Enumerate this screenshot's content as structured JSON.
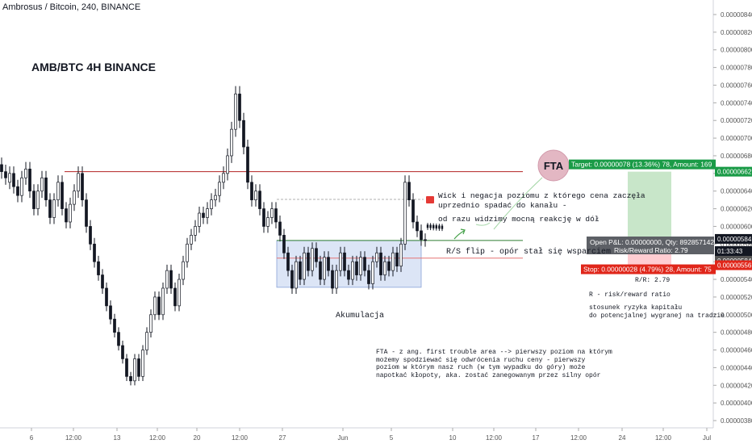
{
  "header": {
    "symbol_line": "Ambrosus / Bitcoin, 240, BINANCE"
  },
  "chart_title": "AMB/BTC 4H BINANCE",
  "annotations": {
    "wick": "Wick i negacja poziomu z którego cena zaczęła\nuprzednio spadać do kanału -",
    "reaction": "od razu widzimy mocną reakcję w dół",
    "rs_flip": "R/S flip - opór stał się wsparciem",
    "accumulation": "Akumulacja",
    "fta_badge": "FTA",
    "fta_desc": "FTA - z ang. first trouble area --> pierwszy poziom na którym\nmożemy spodziewać się odwrócenia ruchu ceny - pierwszy\npoziom w którym nasz ruch (w tym wypadku do góry) może\nnapotkać kłopoty, aka. zostać zanegowanym przez silny opór",
    "rr_short": "R/R: 2.79",
    "rr_def": "R - risk/reward ratio",
    "rr_desc": "stosunek ryzyka kapitału\ndo potencjalnej wygranej na tradzie"
  },
  "position": {
    "target_label": "Target: 0.00000078 (13.36%) 78, Amount: 169",
    "stop_label": "Stop: 0.00000028 (4.79%) 28, Amount: 75",
    "pnl_label": "Open P&L: 0.00000000, Qty: 892857142",
    "rr_label": "Risk/Reward Ratio: 2.79",
    "entry": 5.84e-06,
    "target": 6.62e-06,
    "stop": 5.56e-06
  },
  "price_axis": {
    "ticks": [
      "0.00000840",
      "0.00000820",
      "0.00000800",
      "0.00000780",
      "0.00000760",
      "0.00000740",
      "0.00000720",
      "0.00000700",
      "0.00000680",
      "0.00000660",
      "0.00000640",
      "0.00000620",
      "0.00000600",
      "0.00000580",
      "0.00000560",
      "0.00000540",
      "0.00000520",
      "0.00000500",
      "0.00000480",
      "0.00000460",
      "0.00000440",
      "0.00000420",
      "0.00000400",
      "0.00000380"
    ],
    "badges": [
      {
        "text": "0.00000662",
        "color": "#1a9b47"
      },
      {
        "text": "0.00000584",
        "color": "#131722"
      },
      {
        "text": "01:33:43",
        "color": "#131722"
      },
      {
        "text": "0.00000584",
        "color": "#555555"
      },
      {
        "text": "0.00000556",
        "color": "#e0261a"
      }
    ]
  },
  "time_axis": {
    "labels": [
      "6",
      "12:00",
      "13",
      "12:00",
      "20",
      "12:00",
      "27",
      "Jun",
      "5",
      "10",
      "12:00",
      "17",
      "12:00",
      "24",
      "12:00",
      "Jul"
    ]
  },
  "colors": {
    "up": "#131722",
    "down": "#131722",
    "resistance": "#b22222",
    "support_green": "#2e7d32",
    "accum_box": "#c5d3f0",
    "target_zone": "#c8e6c9",
    "stop_zone": "#ffcdd2",
    "fta_circle": "#e3b7c3"
  },
  "chart_data": {
    "type": "candlestick",
    "title": "AMB/BTC 4H BINANCE",
    "ylabel": "",
    "ylim": [
      3.7e-06,
      8.5e-06
    ],
    "levels": {
      "resistance_top": 6.62e-06,
      "rs_flip": 5.84e-06,
      "lower_red": 5.64e-06
    },
    "accumulation_zone": {
      "y_range": [
        5.31e-06,
        5.84e-06
      ],
      "label": "Akumulacja"
    },
    "price_path": [
      [
        6.7e-06,
        6.62e-06
      ],
      [
        6.62e-06,
        6.55e-06
      ],
      [
        6.5e-06,
        6.6e-06
      ],
      [
        6.6e-06,
        6.45e-06
      ],
      [
        6.45e-06,
        6.35e-06
      ],
      [
        6.35e-06,
        6.55e-06
      ],
      [
        6.55e-06,
        6.65e-06
      ],
      [
        6.65e-06,
        6.4e-06
      ],
      [
        6.4e-06,
        6.2e-06
      ],
      [
        6.2e-06,
        6.4e-06
      ],
      [
        6.4e-06,
        6.55e-06
      ],
      [
        6.55e-06,
        6.3e-06
      ],
      [
        6.3e-06,
        6.1e-06
      ],
      [
        6.1e-06,
        6.3e-06
      ],
      [
        6.3e-06,
        6.5e-06
      ],
      [
        6.5e-06,
        6.2e-06
      ],
      [
        6.2e-06,
        6.05e-06
      ],
      [
        6.05e-06,
        6.25e-06
      ],
      [
        6.25e-06,
        6.4e-06
      ],
      [
        6.4e-06,
        6.6e-06
      ],
      [
        6.6e-06,
        6.3e-06
      ],
      [
        6.3e-06,
        6e-06
      ],
      [
        6e-06,
        5.8e-06
      ],
      [
        5.8e-06,
        5.6e-06
      ],
      [
        5.6e-06,
        5.45e-06
      ],
      [
        5.45e-06,
        5.3e-06
      ],
      [
        5.3e-06,
        5.1e-06
      ],
      [
        5.1e-06,
        4.95e-06
      ],
      [
        4.95e-06,
        4.8e-06
      ],
      [
        4.8e-06,
        4.65e-06
      ],
      [
        4.65e-06,
        4.5e-06
      ],
      [
        4.5e-06,
        4.3e-06
      ],
      [
        4.3e-06,
        4.25e-06
      ],
      [
        4.25e-06,
        4.5e-06
      ],
      [
        4.5e-06,
        4.3e-06
      ],
      [
        4.3e-06,
        4.6e-06
      ],
      [
        4.6e-06,
        4.8e-06
      ],
      [
        4.8e-06,
        5e-06
      ],
      [
        5e-06,
        5.2e-06
      ],
      [
        5.2e-06,
        5e-06
      ],
      [
        5e-06,
        5.3e-06
      ],
      [
        5.3e-06,
        5.5e-06
      ],
      [
        5.5e-06,
        5.3e-06
      ],
      [
        5.3e-06,
        5.1e-06
      ],
      [
        5.1e-06,
        5.4e-06
      ],
      [
        5.4e-06,
        5.6e-06
      ],
      [
        5.6e-06,
        5.8e-06
      ],
      [
        5.8e-06,
        5.9e-06
      ],
      [
        5.9e-06,
        6e-06
      ],
      [
        6e-06,
        6.15e-06
      ],
      [
        6.15e-06,
        6.1e-06
      ],
      [
        6.1e-06,
        6.2e-06
      ],
      [
        6.2e-06,
        6.3e-06
      ],
      [
        6.3e-06,
        6.35e-06
      ],
      [
        6.35e-06,
        6.5e-06
      ],
      [
        6.5e-06,
        6.6e-06
      ],
      [
        6.6e-06,
        6.8e-06
      ],
      [
        6.8e-06,
        7.1e-06
      ],
      [
        7.1e-06,
        7.5e-06
      ],
      [
        7.5e-06,
        7.2e-06
      ],
      [
        7.2e-06,
        6.9e-06
      ],
      [
        6.9e-06,
        6.5e-06
      ],
      [
        6.5e-06,
        6.3e-06
      ],
      [
        6.3e-06,
        6.4e-06
      ],
      [
        6.4e-06,
        6.2e-06
      ],
      [
        6.2e-06,
        6e-06
      ],
      [
        6e-06,
        6.1e-06
      ],
      [
        6.1e-06,
        6.2e-06
      ],
      [
        6.2e-06,
        6.05e-06
      ],
      [
        6.05e-06,
        5.9e-06
      ],
      [
        5.9e-06,
        5.7e-06
      ],
      [
        5.7e-06,
        5.5e-06
      ],
      [
        5.5e-06,
        5.3e-06
      ],
      [
        5.3e-06,
        5.6e-06
      ],
      [
        5.6e-06,
        5.4e-06
      ],
      [
        5.4e-06,
        5.7e-06
      ],
      [
        5.7e-06,
        5.5e-06
      ],
      [
        5.5e-06,
        5.75e-06
      ],
      [
        5.75e-06,
        5.6e-06
      ],
      [
        5.6e-06,
        5.4e-06
      ],
      [
        5.4e-06,
        5.65e-06
      ],
      [
        5.65e-06,
        5.5e-06
      ],
      [
        5.5e-06,
        5.3e-06
      ],
      [
        5.3e-06,
        5.5e-06
      ],
      [
        5.5e-06,
        5.7e-06
      ],
      [
        5.7e-06,
        5.5e-06
      ],
      [
        5.5e-06,
        5.4e-06
      ],
      [
        5.4e-06,
        5.6e-06
      ],
      [
        5.6e-06,
        5.45e-06
      ],
      [
        5.45e-06,
        5.65e-06
      ],
      [
        5.65e-06,
        5.5e-06
      ],
      [
        5.5e-06,
        5.35e-06
      ],
      [
        5.35e-06,
        5.6e-06
      ],
      [
        5.6e-06,
        5.7e-06
      ],
      [
        5.7e-06,
        5.45e-06
      ],
      [
        5.45e-06,
        5.6e-06
      ],
      [
        5.6e-06,
        5.5e-06
      ],
      [
        5.5e-06,
        5.7e-06
      ],
      [
        5.7e-06,
        5.55e-06
      ],
      [
        5.55e-06,
        5.8e-06
      ],
      [
        5.8e-06,
        6.5e-06
      ],
      [
        6.5e-06,
        6.3e-06
      ],
      [
        6.3e-06,
        6.05e-06
      ],
      [
        6.05e-06,
        5.95e-06
      ],
      [
        5.95e-06,
        5.85e-06
      ],
      [
        5.85e-06,
        5.84e-06
      ]
    ]
  }
}
